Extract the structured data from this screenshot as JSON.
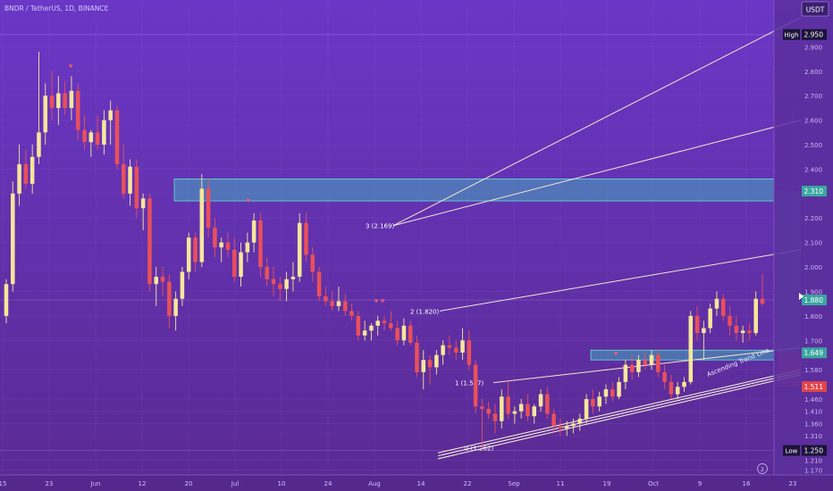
{
  "header": {
    "symbol_line": "BNDR / TetherUS, 1D, BINANCE",
    "currency": "USDT"
  },
  "chart_data": {
    "type": "candlestick",
    "x_ticks": [
      "15",
      "23",
      "Jun",
      "12",
      "20",
      "Jul",
      "10",
      "24",
      "Aug",
      "14",
      "22",
      "Sep",
      "11",
      "19",
      "Oct",
      "9",
      "16",
      "23"
    ],
    "y_ticks": [
      "2.900",
      "2.800",
      "2.700",
      "2.600",
      "2.500",
      "2.400",
      "2.300",
      "2.200",
      "2.100",
      "2.000",
      "1.900",
      "1.800",
      "1.700",
      "1.580",
      "1.460",
      "1.410",
      "1.360",
      "1.310",
      "1.210",
      "1.170"
    ],
    "y_range": [
      1.15,
      3.0
    ],
    "price_labels": [
      {
        "label": "High",
        "value": "2.950",
        "price": 2.95,
        "kind": "dark"
      },
      {
        "label": "",
        "value": "2.310",
        "price": 2.31,
        "kind": "teal"
      },
      {
        "label": "",
        "value": "1.880",
        "price": 1.865,
        "kind": "teal"
      },
      {
        "label": "",
        "value": "1.649",
        "price": 1.649,
        "kind": "teal"
      },
      {
        "label": "",
        "value": "1.511",
        "price": 1.511,
        "kind": "red"
      },
      {
        "label": "Low",
        "value": "1.250",
        "price": 1.25,
        "kind": "dark"
      }
    ],
    "fib_levels": [
      {
        "text": "0 (1.262)",
        "price": 1.262
      },
      {
        "text": "1 (1.527)",
        "price": 1.527
      },
      {
        "text": "2 (1.820)",
        "price": 1.82
      },
      {
        "text": "3 (2.169)",
        "price": 2.169
      }
    ],
    "annotations": {
      "trendline": "Ascending Trend Line",
      "event_marker": "2"
    },
    "zones": [
      {
        "name": "resistance",
        "top": 2.36,
        "bottom": 2.27
      },
      {
        "name": "support",
        "top": 1.66,
        "bottom": 1.62
      }
    ],
    "candles": [
      {
        "o": 1.8,
        "h": 1.95,
        "l": 1.77,
        "c": 1.93
      },
      {
        "o": 1.93,
        "h": 2.35,
        "l": 1.9,
        "c": 2.3
      },
      {
        "o": 2.3,
        "h": 2.5,
        "l": 2.25,
        "c": 2.42
      },
      {
        "o": 2.42,
        "h": 2.48,
        "l": 2.32,
        "c": 2.34
      },
      {
        "o": 2.34,
        "h": 2.5,
        "l": 2.3,
        "c": 2.45
      },
      {
        "o": 2.45,
        "h": 2.88,
        "l": 2.42,
        "c": 2.55
      },
      {
        "o": 2.55,
        "h": 2.75,
        "l": 2.5,
        "c": 2.7
      },
      {
        "o": 2.7,
        "h": 2.8,
        "l": 2.6,
        "c": 2.65
      },
      {
        "o": 2.65,
        "h": 2.78,
        "l": 2.58,
        "c": 2.71
      },
      {
        "o": 2.71,
        "h": 2.76,
        "l": 2.62,
        "c": 2.65
      },
      {
        "o": 2.65,
        "h": 2.78,
        "l": 2.6,
        "c": 2.72
      },
      {
        "o": 2.72,
        "h": 2.75,
        "l": 2.52,
        "c": 2.56
      },
      {
        "o": 2.56,
        "h": 2.62,
        "l": 2.48,
        "c": 2.51
      },
      {
        "o": 2.51,
        "h": 2.56,
        "l": 2.45,
        "c": 2.55
      },
      {
        "o": 2.55,
        "h": 2.62,
        "l": 2.48,
        "c": 2.5
      },
      {
        "o": 2.5,
        "h": 2.64,
        "l": 2.46,
        "c": 2.6
      },
      {
        "o": 2.6,
        "h": 2.68,
        "l": 2.5,
        "c": 2.64
      },
      {
        "o": 2.64,
        "h": 2.66,
        "l": 2.4,
        "c": 2.42
      },
      {
        "o": 2.42,
        "h": 2.5,
        "l": 2.28,
        "c": 2.3
      },
      {
        "o": 2.3,
        "h": 2.44,
        "l": 2.25,
        "c": 2.41
      },
      {
        "o": 2.41,
        "h": 2.44,
        "l": 2.2,
        "c": 2.24
      },
      {
        "o": 2.24,
        "h": 2.3,
        "l": 2.15,
        "c": 2.28
      },
      {
        "o": 2.28,
        "h": 2.3,
        "l": 1.9,
        "c": 1.93
      },
      {
        "o": 1.93,
        "h": 2.0,
        "l": 1.84,
        "c": 1.96
      },
      {
        "o": 1.96,
        "h": 2.0,
        "l": 1.88,
        "c": 1.94
      },
      {
        "o": 1.94,
        "h": 1.97,
        "l": 1.75,
        "c": 1.8
      },
      {
        "o": 1.8,
        "h": 1.9,
        "l": 1.74,
        "c": 1.87
      },
      {
        "o": 1.87,
        "h": 2.0,
        "l": 1.84,
        "c": 1.98
      },
      {
        "o": 1.98,
        "h": 2.14,
        "l": 1.95,
        "c": 2.12
      },
      {
        "o": 2.12,
        "h": 2.14,
        "l": 1.98,
        "c": 2.02
      },
      {
        "o": 2.02,
        "h": 2.38,
        "l": 2.0,
        "c": 2.32
      },
      {
        "o": 2.32,
        "h": 2.36,
        "l": 2.12,
        "c": 2.16
      },
      {
        "o": 2.16,
        "h": 2.2,
        "l": 2.04,
        "c": 2.08
      },
      {
        "o": 2.08,
        "h": 2.12,
        "l": 2.02,
        "c": 2.1
      },
      {
        "o": 2.1,
        "h": 2.14,
        "l": 2.04,
        "c": 2.07
      },
      {
        "o": 2.07,
        "h": 2.12,
        "l": 1.94,
        "c": 1.96
      },
      {
        "o": 1.96,
        "h": 2.1,
        "l": 1.92,
        "c": 2.06
      },
      {
        "o": 2.06,
        "h": 2.14,
        "l": 2.02,
        "c": 2.1
      },
      {
        "o": 2.1,
        "h": 2.22,
        "l": 2.06,
        "c": 2.19
      },
      {
        "o": 2.19,
        "h": 2.22,
        "l": 1.96,
        "c": 2.0
      },
      {
        "o": 2.0,
        "h": 2.04,
        "l": 1.92,
        "c": 1.95
      },
      {
        "o": 1.95,
        "h": 2.0,
        "l": 1.88,
        "c": 1.93
      },
      {
        "o": 1.93,
        "h": 1.96,
        "l": 1.86,
        "c": 1.91
      },
      {
        "o": 1.91,
        "h": 1.98,
        "l": 1.86,
        "c": 1.95
      },
      {
        "o": 1.95,
        "h": 2.02,
        "l": 1.9,
        "c": 1.96
      },
      {
        "o": 1.96,
        "h": 2.22,
        "l": 1.94,
        "c": 2.18
      },
      {
        "o": 2.18,
        "h": 2.22,
        "l": 2.02,
        "c": 2.05
      },
      {
        "o": 2.05,
        "h": 2.08,
        "l": 1.94,
        "c": 1.98
      },
      {
        "o": 1.98,
        "h": 2.0,
        "l": 1.86,
        "c": 1.88
      },
      {
        "o": 1.88,
        "h": 1.92,
        "l": 1.84,
        "c": 1.86
      },
      {
        "o": 1.86,
        "h": 1.9,
        "l": 1.82,
        "c": 1.84
      },
      {
        "o": 1.84,
        "h": 1.92,
        "l": 1.82,
        "c": 1.86
      },
      {
        "o": 1.86,
        "h": 1.89,
        "l": 1.8,
        "c": 1.82
      },
      {
        "o": 1.82,
        "h": 1.85,
        "l": 1.78,
        "c": 1.8
      },
      {
        "o": 1.8,
        "h": 1.82,
        "l": 1.7,
        "c": 1.72
      },
      {
        "o": 1.72,
        "h": 1.78,
        "l": 1.7,
        "c": 1.74
      },
      {
        "o": 1.74,
        "h": 1.77,
        "l": 1.7,
        "c": 1.76
      },
      {
        "o": 1.76,
        "h": 1.8,
        "l": 1.72,
        "c": 1.78
      },
      {
        "o": 1.78,
        "h": 1.8,
        "l": 1.74,
        "c": 1.77
      },
      {
        "o": 1.77,
        "h": 1.82,
        "l": 1.74,
        "c": 1.75
      },
      {
        "o": 1.75,
        "h": 1.78,
        "l": 1.68,
        "c": 1.7
      },
      {
        "o": 1.7,
        "h": 1.79,
        "l": 1.68,
        "c": 1.76
      },
      {
        "o": 1.76,
        "h": 1.78,
        "l": 1.68,
        "c": 1.69
      },
      {
        "o": 1.69,
        "h": 1.72,
        "l": 1.55,
        "c": 1.57
      },
      {
        "o": 1.57,
        "h": 1.66,
        "l": 1.5,
        "c": 1.62
      },
      {
        "o": 1.62,
        "h": 1.64,
        "l": 1.52,
        "c": 1.59
      },
      {
        "o": 1.59,
        "h": 1.66,
        "l": 1.56,
        "c": 1.64
      },
      {
        "o": 1.64,
        "h": 1.7,
        "l": 1.6,
        "c": 1.68
      },
      {
        "o": 1.68,
        "h": 1.72,
        "l": 1.64,
        "c": 1.67
      },
      {
        "o": 1.67,
        "h": 1.7,
        "l": 1.62,
        "c": 1.65
      },
      {
        "o": 1.65,
        "h": 1.75,
        "l": 1.62,
        "c": 1.7
      },
      {
        "o": 1.7,
        "h": 1.74,
        "l": 1.58,
        "c": 1.6
      },
      {
        "o": 1.6,
        "h": 1.62,
        "l": 1.4,
        "c": 1.43
      },
      {
        "o": 1.43,
        "h": 1.46,
        "l": 1.26,
        "c": 1.42
      },
      {
        "o": 1.42,
        "h": 1.45,
        "l": 1.38,
        "c": 1.4
      },
      {
        "o": 1.4,
        "h": 1.44,
        "l": 1.32,
        "c": 1.37
      },
      {
        "o": 1.37,
        "h": 1.5,
        "l": 1.34,
        "c": 1.47
      },
      {
        "o": 1.47,
        "h": 1.54,
        "l": 1.38,
        "c": 1.4
      },
      {
        "o": 1.4,
        "h": 1.43,
        "l": 1.36,
        "c": 1.41
      },
      {
        "o": 1.41,
        "h": 1.46,
        "l": 1.38,
        "c": 1.44
      },
      {
        "o": 1.44,
        "h": 1.48,
        "l": 1.37,
        "c": 1.39
      },
      {
        "o": 1.39,
        "h": 1.44,
        "l": 1.36,
        "c": 1.43
      },
      {
        "o": 1.43,
        "h": 1.5,
        "l": 1.41,
        "c": 1.48
      },
      {
        "o": 1.48,
        "h": 1.51,
        "l": 1.38,
        "c": 1.4
      },
      {
        "o": 1.4,
        "h": 1.42,
        "l": 1.32,
        "c": 1.35
      },
      {
        "o": 1.35,
        "h": 1.38,
        "l": 1.31,
        "c": 1.34
      },
      {
        "o": 1.34,
        "h": 1.37,
        "l": 1.31,
        "c": 1.35
      },
      {
        "o": 1.35,
        "h": 1.38,
        "l": 1.32,
        "c": 1.36
      },
      {
        "o": 1.36,
        "h": 1.4,
        "l": 1.33,
        "c": 1.38
      },
      {
        "o": 1.38,
        "h": 1.48,
        "l": 1.36,
        "c": 1.46
      },
      {
        "o": 1.46,
        "h": 1.5,
        "l": 1.4,
        "c": 1.43
      },
      {
        "o": 1.43,
        "h": 1.49,
        "l": 1.41,
        "c": 1.47
      },
      {
        "o": 1.47,
        "h": 1.52,
        "l": 1.44,
        "c": 1.5
      },
      {
        "o": 1.5,
        "h": 1.53,
        "l": 1.45,
        "c": 1.47
      },
      {
        "o": 1.47,
        "h": 1.55,
        "l": 1.46,
        "c": 1.53
      },
      {
        "o": 1.53,
        "h": 1.62,
        "l": 1.5,
        "c": 1.6
      },
      {
        "o": 1.6,
        "h": 1.64,
        "l": 1.54,
        "c": 1.57
      },
      {
        "o": 1.57,
        "h": 1.64,
        "l": 1.55,
        "c": 1.62
      },
      {
        "o": 1.62,
        "h": 1.65,
        "l": 1.58,
        "c": 1.6
      },
      {
        "o": 1.6,
        "h": 1.66,
        "l": 1.58,
        "c": 1.64
      },
      {
        "o": 1.64,
        "h": 1.66,
        "l": 1.55,
        "c": 1.57
      },
      {
        "o": 1.57,
        "h": 1.6,
        "l": 1.5,
        "c": 1.53
      },
      {
        "o": 1.53,
        "h": 1.56,
        "l": 1.46,
        "c": 1.48
      },
      {
        "o": 1.48,
        "h": 1.53,
        "l": 1.46,
        "c": 1.51
      },
      {
        "o": 1.51,
        "h": 1.55,
        "l": 1.49,
        "c": 1.53
      },
      {
        "o": 1.53,
        "h": 1.82,
        "l": 1.52,
        "c": 1.8
      },
      {
        "o": 1.8,
        "h": 1.84,
        "l": 1.7,
        "c": 1.73
      },
      {
        "o": 1.73,
        "h": 1.78,
        "l": 1.62,
        "c": 1.75
      },
      {
        "o": 1.75,
        "h": 1.85,
        "l": 1.73,
        "c": 1.83
      },
      {
        "o": 1.83,
        "h": 1.9,
        "l": 1.8,
        "c": 1.87
      },
      {
        "o": 1.87,
        "h": 1.89,
        "l": 1.78,
        "c": 1.8
      },
      {
        "o": 1.8,
        "h": 1.84,
        "l": 1.72,
        "c": 1.76
      },
      {
        "o": 1.76,
        "h": 1.8,
        "l": 1.7,
        "c": 1.73
      },
      {
        "o": 1.73,
        "h": 1.76,
        "l": 1.69,
        "c": 1.74
      },
      {
        "o": 1.74,
        "h": 1.77,
        "l": 1.7,
        "c": 1.73
      },
      {
        "o": 1.73,
        "h": 1.9,
        "l": 1.72,
        "c": 1.87
      },
      {
        "o": 1.87,
        "h": 1.97,
        "l": 1.84,
        "c": 1.85
      }
    ]
  }
}
